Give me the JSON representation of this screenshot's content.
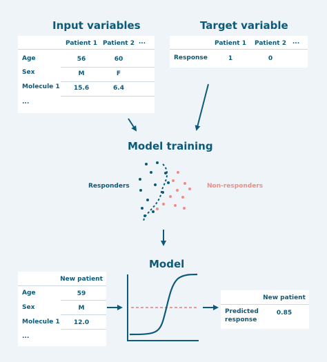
{
  "titles": {
    "input": "Input variables",
    "target": "Target variable",
    "training": "Model training",
    "model": "Model"
  },
  "input_table": {
    "columns": [
      "Patient 1",
      "Patient 2",
      "..."
    ],
    "rows": [
      {
        "label": "Age",
        "values": [
          "56",
          "60"
        ]
      },
      {
        "label": "Sex",
        "values": [
          "M",
          "F"
        ]
      },
      {
        "label": "Molecule 1",
        "values": [
          "15.6",
          "6.4"
        ]
      },
      {
        "label": "...",
        "values": [
          "",
          ""
        ]
      }
    ]
  },
  "target_table": {
    "columns": [
      "Patient 1",
      "Patient 2",
      "..."
    ],
    "rows": [
      {
        "label": "Response",
        "values": [
          "1",
          "0"
        ]
      }
    ]
  },
  "training": {
    "responders_label": "Responders",
    "non_responders_label": "Non-responders"
  },
  "new_patient_table": {
    "column": "New patient",
    "rows": [
      {
        "label": "Age",
        "value": "59"
      },
      {
        "label": "Sex",
        "value": "M"
      },
      {
        "label": "Molecule 1",
        "value": "12.0"
      },
      {
        "label": "...",
        "value": ""
      }
    ]
  },
  "prediction_table": {
    "column": "New patient",
    "row_label_line1": "Predicted",
    "row_label_line2": "response",
    "value": "0.85"
  },
  "colors": {
    "primary": "#0b5a7a",
    "responder": "#0b5a7a",
    "non_responder": "#f28b82",
    "background": "#eef4f8"
  }
}
